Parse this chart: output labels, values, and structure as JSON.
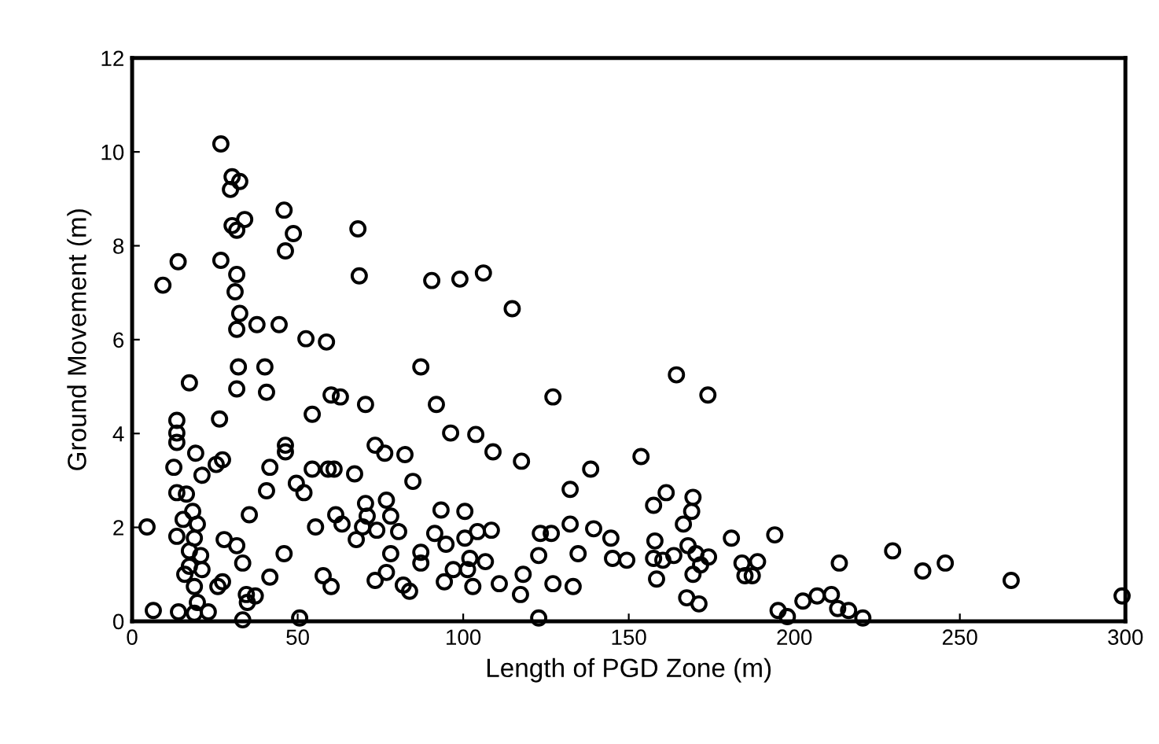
{
  "chart_data": {
    "type": "scatter",
    "xlabel": "Length of PGD Zone (m)",
    "ylabel": "Ground Movement (m)",
    "xlim": [
      0,
      300
    ],
    "ylim": [
      0,
      12
    ],
    "xticks": [
      0,
      50,
      100,
      150,
      200,
      250,
      300
    ],
    "yticks": [
      0,
      2,
      4,
      6,
      8,
      10,
      12
    ],
    "grid": false,
    "legend": false,
    "marker": "circle",
    "series": [
      {
        "color": "#000000",
        "x": [
          26.8,
          30.2,
          32.5,
          29.7,
          45.9,
          34.0,
          30.2,
          31.6,
          48.7,
          46.3,
          13.9,
          26.8,
          9.3,
          31.6,
          31.1,
          32.5,
          31.6,
          37.7,
          44.4,
          52.5,
          32.1,
          40.1,
          17.3,
          31.6,
          40.6,
          26.4,
          13.5,
          54.4,
          13.5,
          13.5,
          46.3,
          46.3,
          19.2,
          27.3,
          25.4,
          12.6,
          41.6,
          54.4,
          21.1,
          49.6,
          51.9,
          13.5,
          16.4,
          40.6,
          35.4,
          18.3,
          4.5,
          15.4,
          19.7,
          13.5,
          18.8,
          27.8,
          31.6,
          17.3,
          20.7,
          33.4,
          45.9,
          17.3,
          21.1,
          15.9,
          41.6,
          27.3,
          25.9,
          18.8,
          34.5,
          37.2,
          34.8,
          19.7,
          6.4,
          14.0,
          18.8,
          23.0,
          33.4,
          50.6,
          68.2,
          68.6,
          90.5,
          99.0,
          106.1,
          114.8,
          58.7,
          87.2,
          127.1,
          60.1,
          62.9,
          70.5,
          91.9,
          96.2,
          103.8,
          109.0,
          117.6,
          73.4,
          76.3,
          82.4,
          84.8,
          59.2,
          61.0,
          67.2,
          132.3,
          70.5,
          76.8,
          93.3,
          100.5,
          71.0,
          78.1,
          55.4,
          61.5,
          63.4,
          69.6,
          73.9,
          80.5,
          91.4,
          100.5,
          104.3,
          108.5,
          123.3,
          126.6,
          132.3,
          67.7,
          94.8,
          87.2,
          78.1,
          102.0,
          106.7,
          122.8,
          134.7,
          87.2,
          97.0,
          101.3,
          76.8,
          57.7,
          60.1,
          73.4,
          81.9,
          83.8,
          94.3,
          102.9,
          110.9,
          118.1,
          117.3,
          127.1,
          133.2,
          122.8,
          164.4,
          173.9,
          153.7,
          138.5,
          161.3,
          157.5,
          169.4,
          169.0,
          139.4,
          144.6,
          145.1,
          149.4,
          166.5,
          157.9,
          157.5,
          160.3,
          163.6,
          167.9,
          170.3,
          174.1,
          171.7,
          169.4,
          158.4,
          167.5,
          171.2,
          181.0,
          184.2,
          188.9,
          185.1,
          187.3,
          194.1,
          195.1,
          197.9,
          202.6,
          206.9,
          211.2,
          213.6,
          213.1,
          216.4,
          220.7,
          229.7,
          238.8,
          245.6,
          265.5,
          299.0
        ],
        "values": [
          10.17,
          9.47,
          9.37,
          9.2,
          8.76,
          8.56,
          8.43,
          8.33,
          8.26,
          7.89,
          7.66,
          7.69,
          7.16,
          7.39,
          7.02,
          6.56,
          6.22,
          6.32,
          6.32,
          6.02,
          5.42,
          5.42,
          5.08,
          4.95,
          4.88,
          4.31,
          4.28,
          4.41,
          4.01,
          3.81,
          3.75,
          3.61,
          3.58,
          3.44,
          3.34,
          3.28,
          3.28,
          3.24,
          3.11,
          2.94,
          2.74,
          2.74,
          2.71,
          2.78,
          2.27,
          2.34,
          2.01,
          2.17,
          2.07,
          1.81,
          1.77,
          1.74,
          1.61,
          1.5,
          1.4,
          1.24,
          1.44,
          1.17,
          1.1,
          1.0,
          0.94,
          0.84,
          0.74,
          0.74,
          0.57,
          0.54,
          0.4,
          0.4,
          0.23,
          0.2,
          0.17,
          0.2,
          0.03,
          0.07,
          8.36,
          7.36,
          7.26,
          7.29,
          7.42,
          6.66,
          5.95,
          5.42,
          4.78,
          4.82,
          4.78,
          4.62,
          4.62,
          4.01,
          3.98,
          3.61,
          3.41,
          3.75,
          3.58,
          3.55,
          2.98,
          3.24,
          3.24,
          3.14,
          2.81,
          2.51,
          2.58,
          2.37,
          2.34,
          2.24,
          2.24,
          2.01,
          2.27,
          2.07,
          2.01,
          1.94,
          1.91,
          1.87,
          1.77,
          1.91,
          1.94,
          1.87,
          1.87,
          2.07,
          1.74,
          1.64,
          1.47,
          1.44,
          1.34,
          1.27,
          1.4,
          1.44,
          1.24,
          1.1,
          1.1,
          1.04,
          0.97,
          0.74,
          0.87,
          0.77,
          0.64,
          0.84,
          0.74,
          0.8,
          1.0,
          0.57,
          0.8,
          0.74,
          0.07,
          5.25,
          4.82,
          3.51,
          3.24,
          2.74,
          2.47,
          2.64,
          2.34,
          1.97,
          1.77,
          1.34,
          1.3,
          2.07,
          1.71,
          1.34,
          1.3,
          1.4,
          1.61,
          1.44,
          1.37,
          1.2,
          1.0,
          0.9,
          0.5,
          0.37,
          1.77,
          1.24,
          1.27,
          0.97,
          0.97,
          1.84,
          0.23,
          0.1,
          0.43,
          0.54,
          0.57,
          1.24,
          0.27,
          0.23,
          0.07,
          1.5,
          1.07,
          1.24,
          0.87,
          0.54
        ]
      }
    ]
  }
}
